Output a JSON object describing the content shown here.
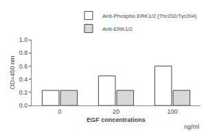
{
  "chart_data": {
    "type": "bar",
    "categories": [
      "0",
      "20",
      "100"
    ],
    "series": [
      {
        "name": "Anti-Phospho ERK1/2 (Thr202/Tyr204)",
        "color": "white",
        "values": [
          0.23,
          0.45,
          0.6
        ]
      },
      {
        "name": "Anti-ERK1/2",
        "color": "#d8d8d8",
        "values": [
          0.23,
          0.23,
          0.23
        ]
      }
    ],
    "xlabel": "EGF concentrations",
    "ylabel": "OD=450 nm",
    "annotations": [
      "ng/ml"
    ],
    "ylim": [
      0.0,
      1.0
    ],
    "yticks": [
      {
        "value": 0.0,
        "label": "0.0"
      },
      0.2,
      0.4,
      0.6,
      0.8,
      {
        "value": 1.0,
        "label": "1.0"
      }
    ],
    "grid": false,
    "legend": "upper right"
  }
}
